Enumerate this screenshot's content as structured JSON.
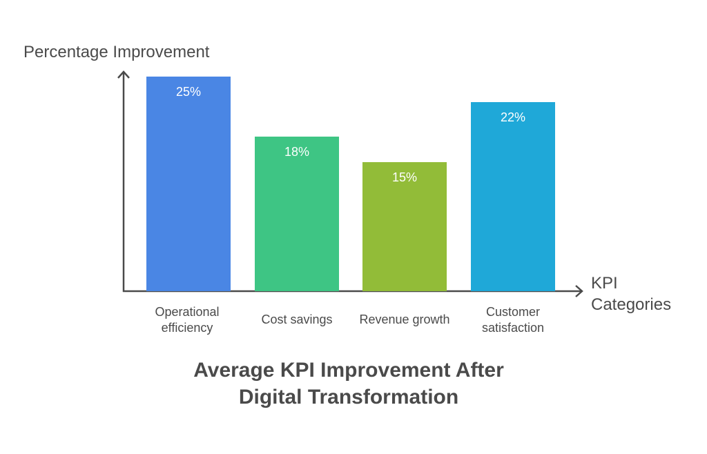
{
  "chart_data": {
    "type": "bar",
    "title": "Average KPI Improvement After Digital Transformation",
    "title_lines": [
      "Average KPI Improvement After",
      "Digital Transformation"
    ],
    "xlabel": "KPI Categories",
    "xlabel_lines": [
      "KPI",
      "Categories"
    ],
    "ylabel": "Percentage Improvement",
    "categories": [
      "Operational efficiency",
      "Cost savings",
      "Revenue growth",
      "Customer satisfaction"
    ],
    "category_lines": [
      [
        "Operational",
        "efficiency"
      ],
      [
        "Cost savings"
      ],
      [
        "Revenue growth"
      ],
      [
        "Customer",
        "satisfaction"
      ]
    ],
    "values": [
      25,
      18,
      15,
      22
    ],
    "value_labels": [
      "25%",
      "18%",
      "15%",
      "22%"
    ],
    "colors": [
      "#4a86e4",
      "#3ec584",
      "#92bc38",
      "#1fa8d8"
    ],
    "grid": false,
    "legend": "none",
    "ylim": [
      0,
      25
    ]
  }
}
